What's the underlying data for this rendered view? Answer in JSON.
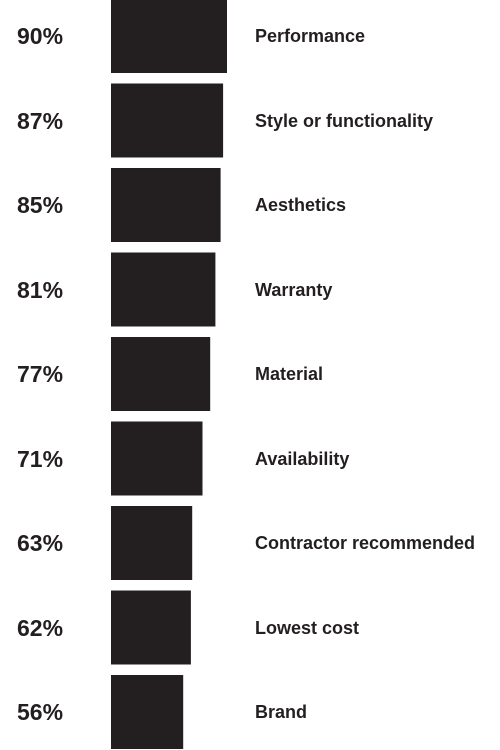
{
  "chart_data": {
    "type": "bar",
    "orientation": "horizontal",
    "bar_color": "#231f20",
    "value_labels": [
      "90%",
      "87%",
      "85%",
      "81%",
      "77%",
      "71%",
      "63%",
      "62%",
      "56%"
    ],
    "categories": [
      "Performance",
      "Style or functionality",
      "Aesthetics",
      "Warranty",
      "Material",
      "Availability",
      "Contractor recommended",
      "Lowest cost",
      "Brand"
    ],
    "values": [
      90,
      87,
      85,
      81,
      77,
      71,
      63,
      62,
      56
    ]
  }
}
